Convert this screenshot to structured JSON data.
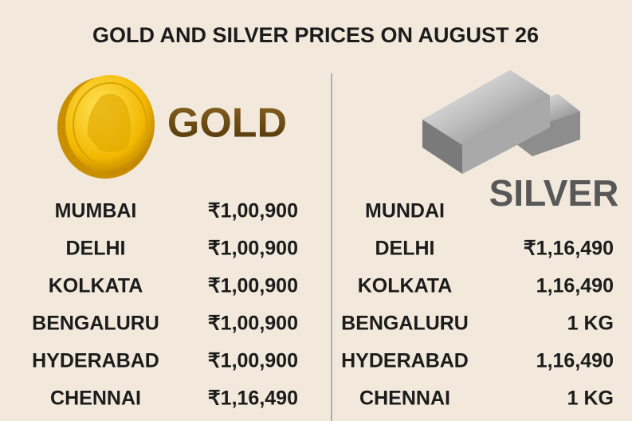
{
  "title": "GOLD AND SILVER PRICES ON AUGUST 26",
  "gold": {
    "label": "GOLD",
    "rows": [
      [
        "MUMBAI",
        "₹1,00,900"
      ],
      [
        "DELHI",
        "₹1,00,900"
      ],
      [
        "KOLKATA",
        "₹1,00,900"
      ],
      [
        "BENGALURU",
        "₹1,00,900"
      ],
      [
        "HYDERABAD",
        "₹1,00,900"
      ],
      [
        "CHENNAI",
        "₹1,16,490"
      ]
    ]
  },
  "silver": {
    "label": "SILVER",
    "rows": [
      [
        "MUNDAI"
      ],
      [
        "DELHI",
        "₹1,16,490"
      ],
      [
        "KOLKATA",
        "1,16,490"
      ],
      [
        "BENGALURU",
        "1 KG"
      ],
      [
        "HYDERABAD",
        "1,16,490"
      ],
      [
        "CHENNAI",
        "1 KG"
      ]
    ]
  }
}
